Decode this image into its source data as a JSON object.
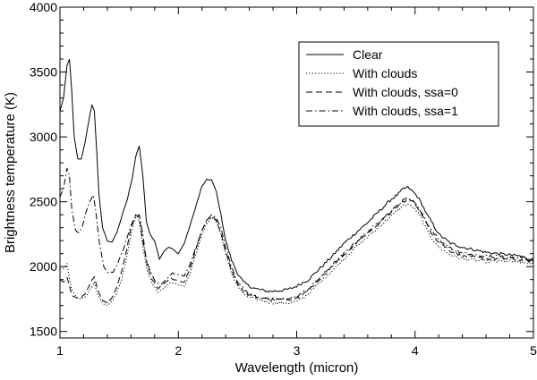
{
  "chart_data": {
    "type": "line",
    "title": "",
    "xlabel": "Wavelength (micron)",
    "ylabel": "Brightness temperature (K)",
    "xlim": [
      1,
      5
    ],
    "ylim": [
      1450,
      4000
    ],
    "x_ticks": [
      1,
      2,
      3,
      4,
      5
    ],
    "y_ticks": [
      1500,
      2000,
      2500,
      3000,
      3500,
      4000
    ],
    "grid": false,
    "legend_position": "top-right",
    "series": [
      {
        "name": "Clear",
        "dash": "solid",
        "x": [
          1.0,
          1.03,
          1.06,
          1.08,
          1.1,
          1.12,
          1.15,
          1.18,
          1.21,
          1.24,
          1.27,
          1.29,
          1.31,
          1.33,
          1.36,
          1.4,
          1.44,
          1.48,
          1.52,
          1.57,
          1.61,
          1.64,
          1.67,
          1.7,
          1.73,
          1.76,
          1.8,
          1.84,
          1.88,
          1.92,
          1.96,
          2.0,
          2.05,
          2.1,
          2.15,
          2.2,
          2.24,
          2.28,
          2.32,
          2.36,
          2.4,
          2.45,
          2.5,
          2.55,
          2.6,
          2.65,
          2.7,
          2.75,
          2.8,
          2.85,
          2.9,
          2.95,
          3.0,
          3.1,
          3.2,
          3.3,
          3.4,
          3.5,
          3.6,
          3.7,
          3.8,
          3.86,
          3.9,
          3.94,
          3.98,
          4.02,
          4.06,
          4.1,
          4.15,
          4.2,
          4.3,
          4.4,
          4.5,
          4.6,
          4.7,
          4.8,
          4.9,
          5.0
        ],
        "y": [
          3200,
          3300,
          3550,
          3600,
          3350,
          3000,
          2830,
          2830,
          2950,
          3100,
          3250,
          3200,
          2900,
          2550,
          2300,
          2200,
          2190,
          2260,
          2380,
          2520,
          2680,
          2850,
          2930,
          2700,
          2350,
          2250,
          2200,
          2060,
          2120,
          2150,
          2130,
          2100,
          2180,
          2320,
          2470,
          2620,
          2670,
          2670,
          2580,
          2400,
          2200,
          2050,
          1950,
          1880,
          1850,
          1830,
          1820,
          1810,
          1810,
          1815,
          1820,
          1830,
          1850,
          1900,
          1990,
          2080,
          2180,
          2260,
          2340,
          2430,
          2520,
          2560,
          2600,
          2610,
          2580,
          2540,
          2480,
          2400,
          2330,
          2250,
          2180,
          2150,
          2130,
          2110,
          2100,
          2090,
          2080,
          2040
        ]
      },
      {
        "name": "With clouds",
        "dash": "dotted",
        "x": [
          1.0,
          1.03,
          1.06,
          1.08,
          1.1,
          1.14,
          1.18,
          1.22,
          1.26,
          1.29,
          1.32,
          1.36,
          1.4,
          1.44,
          1.48,
          1.52,
          1.56,
          1.6,
          1.64,
          1.67,
          1.7,
          1.74,
          1.78,
          1.83,
          1.88,
          1.94,
          2.0,
          2.05,
          2.1,
          2.15,
          2.2,
          2.24,
          2.28,
          2.32,
          2.36,
          2.4,
          2.45,
          2.5,
          2.55,
          2.6,
          2.65,
          2.7,
          2.75,
          2.8,
          2.85,
          2.9,
          2.95,
          3.0,
          3.1,
          3.2,
          3.3,
          3.4,
          3.5,
          3.6,
          3.7,
          3.8,
          3.86,
          3.9,
          3.94,
          3.98,
          4.02,
          4.06,
          4.1,
          4.15,
          4.2,
          4.3,
          4.4,
          4.5,
          4.6,
          4.7,
          4.8,
          4.9,
          5.0
        ],
        "y": [
          1980,
          1990,
          2020,
          1900,
          1820,
          1760,
          1750,
          1770,
          1830,
          1880,
          1780,
          1720,
          1700,
          1730,
          1800,
          1900,
          2050,
          2250,
          2400,
          2350,
          2150,
          1960,
          1870,
          1800,
          1840,
          1880,
          1860,
          1850,
          1950,
          2100,
          2250,
          2330,
          2380,
          2350,
          2250,
          2100,
          1950,
          1850,
          1790,
          1760,
          1750,
          1740,
          1730,
          1720,
          1720,
          1720,
          1720,
          1730,
          1790,
          1880,
          1970,
          2060,
          2150,
          2230,
          2310,
          2390,
          2440,
          2470,
          2480,
          2460,
          2420,
          2360,
          2280,
          2210,
          2150,
          2090,
          2060,
          2050,
          2040,
          2040,
          2040,
          2030,
          2020
        ]
      },
      {
        "name": "With clouds, ssa=0",
        "dash": "dashed",
        "x": [
          1.0,
          1.03,
          1.06,
          1.08,
          1.1,
          1.14,
          1.18,
          1.22,
          1.26,
          1.29,
          1.32,
          1.36,
          1.4,
          1.44,
          1.48,
          1.52,
          1.56,
          1.6,
          1.64,
          1.67,
          1.7,
          1.74,
          1.78,
          1.83,
          1.88,
          1.94,
          2.0,
          2.05,
          2.1,
          2.15,
          2.2,
          2.24,
          2.28,
          2.32,
          2.36,
          2.4,
          2.45,
          2.5,
          2.55,
          2.6,
          2.65,
          2.7,
          2.75,
          2.8,
          2.85,
          2.9,
          2.95,
          3.0,
          3.1,
          3.2,
          3.3,
          3.4,
          3.5,
          3.6,
          3.7,
          3.8,
          3.86,
          3.9,
          3.94,
          3.98,
          4.02,
          4.06,
          4.1,
          4.15,
          4.2,
          4.3,
          4.4,
          4.5,
          4.6,
          4.7,
          4.8,
          4.9,
          5.0
        ],
        "y": [
          1900,
          1880,
          1920,
          1850,
          1780,
          1760,
          1760,
          1800,
          1880,
          1920,
          1820,
          1740,
          1720,
          1760,
          1840,
          1960,
          2120,
          2300,
          2400,
          2380,
          2200,
          2000,
          1900,
          1830,
          1870,
          1910,
          1890,
          1880,
          1990,
          2140,
          2280,
          2360,
          2390,
          2360,
          2260,
          2110,
          1970,
          1870,
          1810,
          1780,
          1770,
          1760,
          1750,
          1745,
          1745,
          1745,
          1750,
          1760,
          1820,
          1910,
          2000,
          2090,
          2180,
          2260,
          2340,
          2420,
          2470,
          2500,
          2520,
          2500,
          2460,
          2400,
          2320,
          2250,
          2190,
          2120,
          2080,
          2070,
          2060,
          2060,
          2060,
          2050,
          2040
        ]
      },
      {
        "name": "With clouds, ssa=1",
        "dash": "dashdot",
        "x": [
          1.0,
          1.03,
          1.06,
          1.08,
          1.1,
          1.13,
          1.16,
          1.19,
          1.22,
          1.25,
          1.28,
          1.3,
          1.33,
          1.37,
          1.41,
          1.45,
          1.49,
          1.53,
          1.57,
          1.61,
          1.64,
          1.67,
          1.7,
          1.73,
          1.77,
          1.81,
          1.85,
          1.9,
          1.95,
          2.0,
          2.05,
          2.1,
          2.15,
          2.2,
          2.24,
          2.28,
          2.32,
          2.36,
          2.4,
          2.45,
          2.5,
          2.55,
          2.6,
          2.65,
          2.7,
          2.75,
          2.8,
          2.85,
          2.9,
          2.95,
          3.0,
          3.1,
          3.2,
          3.3,
          3.4,
          3.5,
          3.6,
          3.7,
          3.8,
          3.86,
          3.9,
          3.94,
          3.98,
          4.02,
          4.06,
          4.1,
          4.15,
          4.2,
          4.3,
          4.4,
          4.5,
          4.6,
          4.7,
          4.8,
          4.9,
          5.0
        ],
        "y": [
          2540,
          2600,
          2760,
          2700,
          2450,
          2280,
          2260,
          2310,
          2420,
          2500,
          2550,
          2450,
          2200,
          2000,
          1950,
          1960,
          2030,
          2120,
          2230,
          2340,
          2380,
          2400,
          2250,
          2050,
          1950,
          1880,
          1860,
          1900,
          1950,
          1940,
          1930,
          2020,
          2150,
          2280,
          2350,
          2400,
          2380,
          2300,
          2150,
          2000,
          1890,
          1830,
          1790,
          1770,
          1760,
          1750,
          1750,
          1750,
          1755,
          1760,
          1770,
          1830,
          1920,
          2010,
          2100,
          2190,
          2270,
          2350,
          2430,
          2480,
          2510,
          2530,
          2510,
          2470,
          2410,
          2340,
          2270,
          2210,
          2140,
          2100,
          2090,
          2080,
          2080,
          2075,
          2070,
          2060
        ]
      }
    ]
  }
}
